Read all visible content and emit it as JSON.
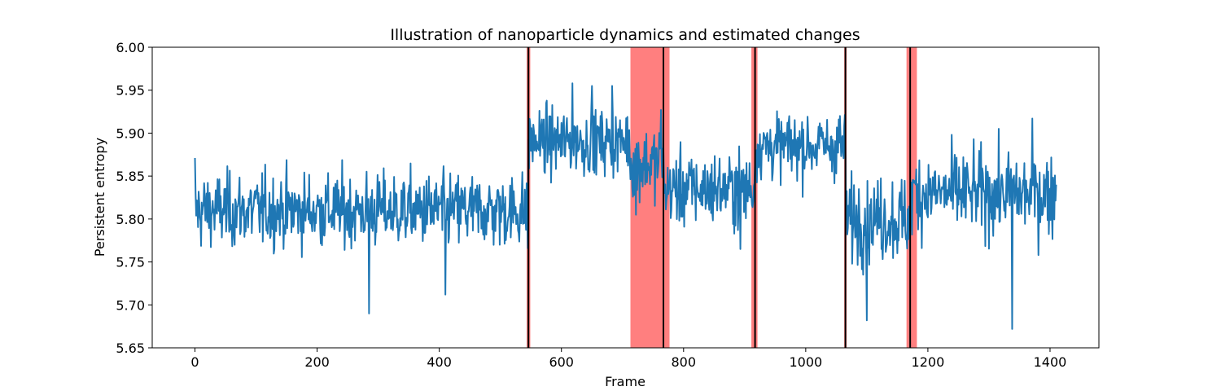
{
  "chart_data": {
    "type": "line",
    "title": "Illustration of nanoparticle dynamics and estimated changes",
    "xlabel": "Frame",
    "ylabel": "Persistent entropy",
    "xlim": [
      -70,
      1480
    ],
    "ylim": [
      5.65,
      6.0
    ],
    "xticks": [
      0,
      200,
      400,
      600,
      800,
      1000,
      1200,
      1400
    ],
    "yticks": [
      "5.65",
      "5.70",
      "5.75",
      "5.80",
      "5.85",
      "5.90",
      "5.95",
      "6.00"
    ],
    "grid": false,
    "line_color": "#1f77b4",
    "series": [
      {
        "segments": [
          {
            "start": 0,
            "end": 545,
            "mean": 5.81,
            "sd": 0.025
          },
          {
            "start": 546,
            "end": 712,
            "mean": 5.89,
            "sd": 0.022
          },
          {
            "start": 713,
            "end": 767,
            "mean": 5.865,
            "sd": 0.025
          },
          {
            "start": 768,
            "end": 916,
            "mean": 5.835,
            "sd": 0.025
          },
          {
            "start": 917,
            "end": 1065,
            "mean": 5.885,
            "sd": 0.022
          },
          {
            "start": 1066,
            "end": 1172,
            "mean": 5.8,
            "sd": 0.028
          },
          {
            "start": 1173,
            "end": 1410,
            "mean": 5.83,
            "sd": 0.028
          }
        ],
        "extremes": [
          {
            "x": 0,
            "y": 5.871
          },
          {
            "x": 285,
            "y": 5.69
          },
          {
            "x": 410,
            "y": 5.712
          },
          {
            "x": 545,
            "y": 5.766
          },
          {
            "x": 618,
            "y": 5.958
          },
          {
            "x": 650,
            "y": 5.955
          },
          {
            "x": 683,
            "y": 5.955
          },
          {
            "x": 722,
            "y": 5.805
          },
          {
            "x": 763,
            "y": 5.927
          },
          {
            "x": 893,
            "y": 5.765
          },
          {
            "x": 1056,
            "y": 5.92
          },
          {
            "x": 1100,
            "y": 5.682
          },
          {
            "x": 1338,
            "y": 5.672
          },
          {
            "x": 1371,
            "y": 5.917
          },
          {
            "x": 1410,
            "y": 5.84
          }
        ]
      }
    ],
    "changepoints": [
      546,
      767,
      917,
      1065,
      1171
    ],
    "changepoint_color": "#000000",
    "intervals": [
      {
        "start": 543,
        "end": 549
      },
      {
        "start": 713,
        "end": 777
      },
      {
        "start": 911,
        "end": 921
      },
      {
        "start": 1063,
        "end": 1067
      },
      {
        "start": 1165,
        "end": 1182
      }
    ],
    "interval_color": "#ff7f7f"
  }
}
